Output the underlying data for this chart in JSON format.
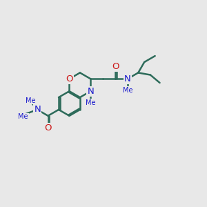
{
  "bg_color": "#e8e8e8",
  "bond_color": "#2d6b5a",
  "N_color": "#1818cc",
  "O_color": "#cc1818",
  "lw": 1.8,
  "fs": 8.5,
  "figsize": [
    3.0,
    3.0
  ],
  "dpi": 100,
  "xlim": [
    0,
    12
  ],
  "ylim": [
    2,
    9
  ]
}
